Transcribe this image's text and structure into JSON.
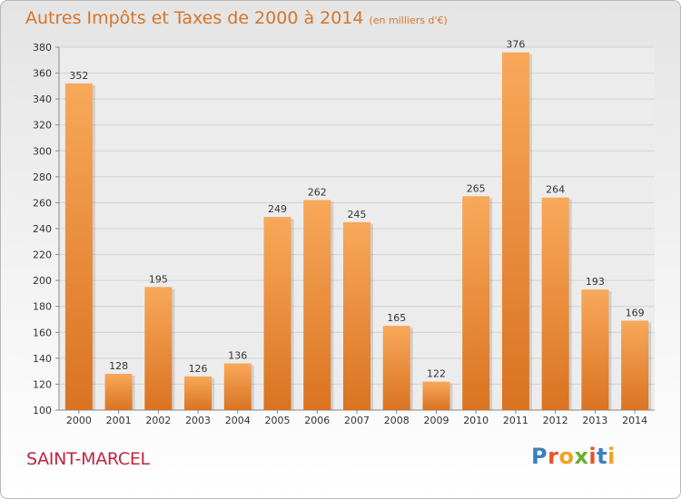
{
  "header": {
    "title": "Autres Impôts et Taxes de 2000 à 2014",
    "subtitle": "(en milliers d'€)"
  },
  "footer": {
    "town": "SAINT-MARCEL",
    "logo": "Proxiti"
  },
  "colors": {
    "title": "#d5752b",
    "town": "#c0263f",
    "bar_light": "#f8a85a",
    "bar_dark": "#d97321",
    "logo_letters": [
      "#3a7fc1",
      "#e8542a",
      "#f2a31b",
      "#6cad2f",
      "#e8542a",
      "#3a7fc1",
      "#f2a31b"
    ]
  },
  "chart_data": {
    "type": "bar",
    "title": "Autres Impôts et Taxes de 2000 à 2014",
    "subtitle": "(en milliers d'€)",
    "categories": [
      "2000",
      "2001",
      "2002",
      "2003",
      "2004",
      "2005",
      "2006",
      "2007",
      "2008",
      "2009",
      "2010",
      "2011",
      "2012",
      "2013",
      "2014"
    ],
    "values": [
      352,
      128,
      195,
      126,
      136,
      249,
      262,
      245,
      165,
      122,
      265,
      376,
      264,
      193,
      169
    ],
    "xlabel": "",
    "ylabel": "",
    "ylim": [
      100,
      380
    ],
    "yticks": [
      100,
      120,
      140,
      160,
      180,
      200,
      220,
      240,
      260,
      280,
      300,
      320,
      340,
      360,
      380
    ],
    "grid": true
  }
}
